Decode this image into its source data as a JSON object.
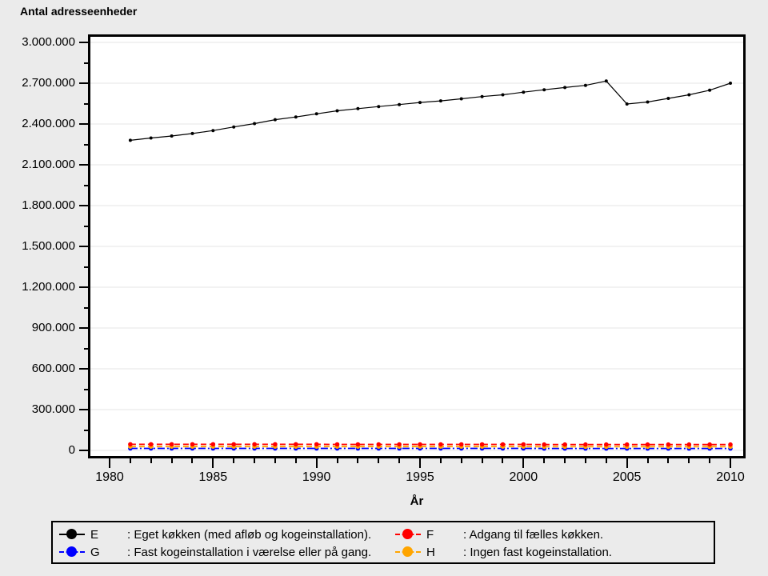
{
  "title": "Antal adresseenheder",
  "colors": {
    "background": "#ebebeb",
    "plot_background": "#ffffff",
    "grid": "#e6e6e6",
    "frame": "#000000",
    "series_E": "#000000",
    "series_F": "#ff0000",
    "series_G": "#0000ff",
    "series_H": "#ffa500"
  },
  "chart_data": {
    "type": "line",
    "title": "Antal adresseenheder",
    "xlabel": "År",
    "ylabel": "Antal adresseenheder",
    "ylim": [
      0,
      3000000
    ],
    "xlim": [
      1980,
      2010
    ],
    "grid": "horizontal-major-only",
    "legend_position": "bottom-box",
    "x": [
      1981,
      1982,
      1983,
      1984,
      1985,
      1986,
      1987,
      1988,
      1989,
      1990,
      1991,
      1992,
      1993,
      1994,
      1995,
      1996,
      1997,
      1998,
      1999,
      2000,
      2001,
      2002,
      2003,
      2004,
      2005,
      2006,
      2007,
      2008,
      2009,
      2010
    ],
    "series": [
      {
        "name": "E",
        "label": ": Eget køkken (med afløb og kogeinstallation).",
        "color": "#000000",
        "dash": "solid",
        "values": [
          2280000,
          2297000,
          2312000,
          2330000,
          2352000,
          2378000,
          2403000,
          2432000,
          2452000,
          2475000,
          2497000,
          2513000,
          2528000,
          2543000,
          2558000,
          2570000,
          2585000,
          2602000,
          2615000,
          2634000,
          2652000,
          2668000,
          2684000,
          2716000,
          2547000,
          2562000,
          2588000,
          2615000,
          2648000,
          2700000
        ]
      },
      {
        "name": "F",
        "label": ": Adgang til fælles køkken.",
        "color": "#ff0000",
        "dash": "dashed",
        "values": [
          45000,
          45000,
          45000,
          45000,
          45000,
          45000,
          45000,
          45000,
          45000,
          45000,
          44000,
          44000,
          44000,
          44000,
          44000,
          44000,
          44000,
          44000,
          44000,
          44000,
          43000,
          43000,
          43000,
          43000,
          43000,
          43000,
          43000,
          43000,
          43000,
          43000
        ]
      },
      {
        "name": "G",
        "label": ": Fast kogeinstallation i værelse eller på gang.",
        "color": "#0000ff",
        "dash": "dashdot",
        "values": [
          15000,
          15000,
          15000,
          15000,
          15000,
          15000,
          15000,
          15000,
          15000,
          15000,
          15000,
          15000,
          15000,
          15000,
          15000,
          15000,
          15000,
          15000,
          15000,
          15000,
          14000,
          14000,
          14000,
          14000,
          14000,
          14000,
          14000,
          14000,
          14000,
          14000
        ]
      },
      {
        "name": "H",
        "label": ": Ingen fast kogeinstallation.",
        "color": "#ffa500",
        "dash": "dashed",
        "values": [
          28000,
          28000,
          28000,
          28000,
          28000,
          28000,
          28000,
          28000,
          28000,
          28000,
          28000,
          28000,
          28000,
          28000,
          28000,
          28000,
          28000,
          28000,
          28000,
          28000,
          27000,
          27000,
          27000,
          27000,
          27000,
          27000,
          27000,
          27000,
          27000,
          27000
        ]
      }
    ],
    "y_axis": {
      "majors": [
        {
          "value": 0,
          "label": "0"
        },
        {
          "value": 300000,
          "label": "300.000"
        },
        {
          "value": 600000,
          "label": "600.000"
        },
        {
          "value": 900000,
          "label": "900.000"
        },
        {
          "value": 1200000,
          "label": "1.200.000"
        },
        {
          "value": 1500000,
          "label": "1.500.000"
        },
        {
          "value": 1800000,
          "label": "1.800.000"
        },
        {
          "value": 2100000,
          "label": "2.100.000"
        },
        {
          "value": 2400000,
          "label": "2.400.000"
        },
        {
          "value": 2700000,
          "label": "2.700.000"
        },
        {
          "value": 3000000,
          "label": "3.000.000"
        }
      ],
      "minor_values": [
        150000,
        450000,
        750000,
        1050000,
        1350000,
        1650000,
        1950000,
        2250000,
        2550000,
        2850000
      ]
    },
    "x_axis": {
      "tick_years": [
        1980,
        1981,
        1982,
        1983,
        1984,
        1985,
        1986,
        1987,
        1988,
        1989,
        1990,
        1991,
        1992,
        1993,
        1994,
        1995,
        1996,
        1997,
        1998,
        1999,
        2000,
        2001,
        2002,
        2003,
        2004,
        2005,
        2006,
        2007,
        2008,
        2009,
        2010
      ],
      "majors": [
        {
          "year": 1980,
          "label": "1980"
        },
        {
          "year": 1985,
          "label": "1985"
        },
        {
          "year": 1990,
          "label": "1990"
        },
        {
          "year": 1995,
          "label": "1995"
        },
        {
          "year": 2000,
          "label": "2000"
        },
        {
          "year": 2005,
          "label": "2005"
        },
        {
          "year": 2010,
          "label": "2010"
        }
      ]
    }
  },
  "legend": {
    "items": [
      {
        "letter": "E",
        "text": ": Eget køkken (med afløb og kogeinstallation).",
        "color": "#000000",
        "dash": "solid"
      },
      {
        "letter": "F",
        "text": ": Adgang til fælles køkken.",
        "color": "#ff0000",
        "dash": "dashed"
      },
      {
        "letter": "G",
        "text": ": Fast kogeinstallation i værelse eller på gang.",
        "color": "#0000ff",
        "dash": "dashdot"
      },
      {
        "letter": "H",
        "text": ": Ingen fast kogeinstallation.",
        "color": "#ffa500",
        "dash": "dashed"
      }
    ]
  }
}
